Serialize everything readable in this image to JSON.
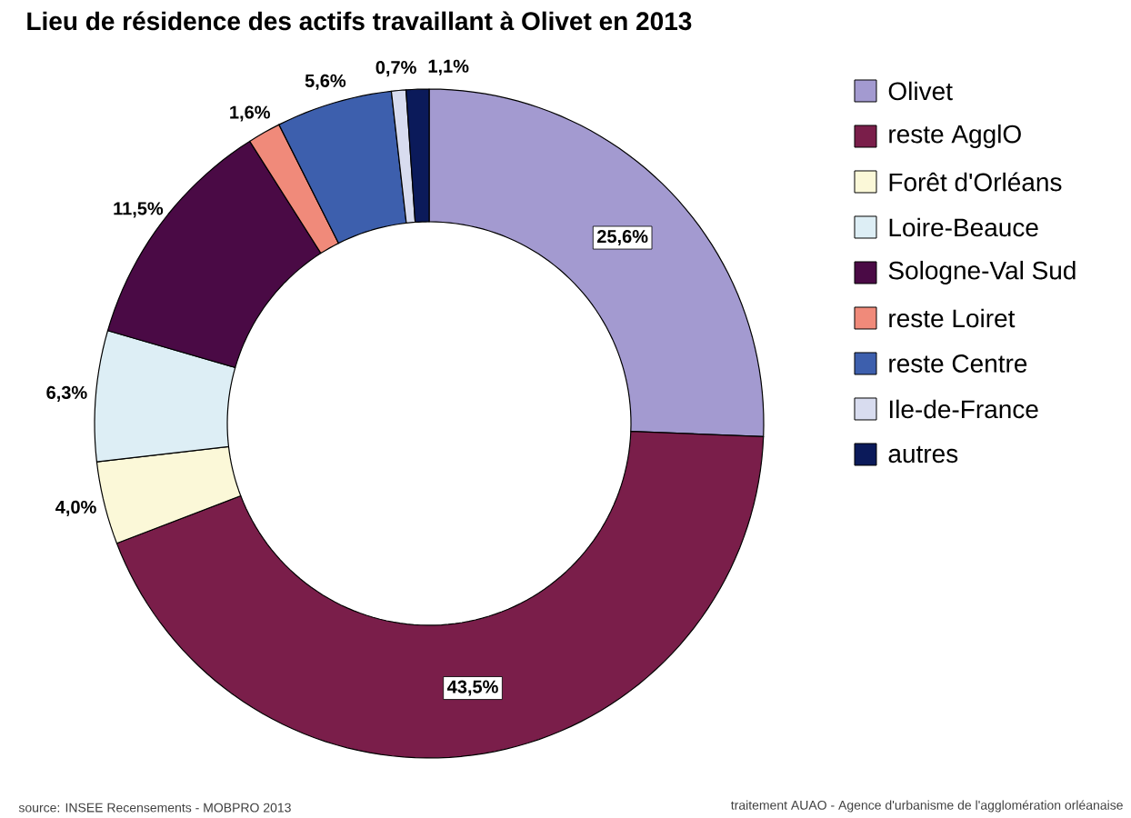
{
  "chart_data": {
    "type": "donut",
    "title": "Lieu de résidence des actifs travaillant à Olivet en 2013",
    "categories": [
      "Olivet",
      "reste AgglO",
      "Forêt d'Orléans",
      "Loire-Beauce",
      "Sologne-Val Sud",
      "reste Loiret",
      "reste Centre",
      "Ile-de-France",
      "autres"
    ],
    "values": [
      25.6,
      43.5,
      4.0,
      6.3,
      11.5,
      1.6,
      5.6,
      0.7,
      1.1
    ],
    "value_labels": [
      "25,6%",
      "43,5%",
      "4,0%",
      "6,3%",
      "11,5%",
      "1,6%",
      "5,6%",
      "0,7%",
      "1,1%"
    ],
    "colors": [
      "#a39ad0",
      "#7a1e4a",
      "#fbf8d8",
      "#ddeef5",
      "#4a0a45",
      "#f08a7a",
      "#3d5fad",
      "#d8dcef",
      "#0b1a5a"
    ],
    "legend": "right",
    "annotations": [
      "source: INSEE Recensements - MOBPRO 2013",
      "traitement AUAO - Agence d'urbanisme de l'agglomération orléanaise"
    ]
  }
}
